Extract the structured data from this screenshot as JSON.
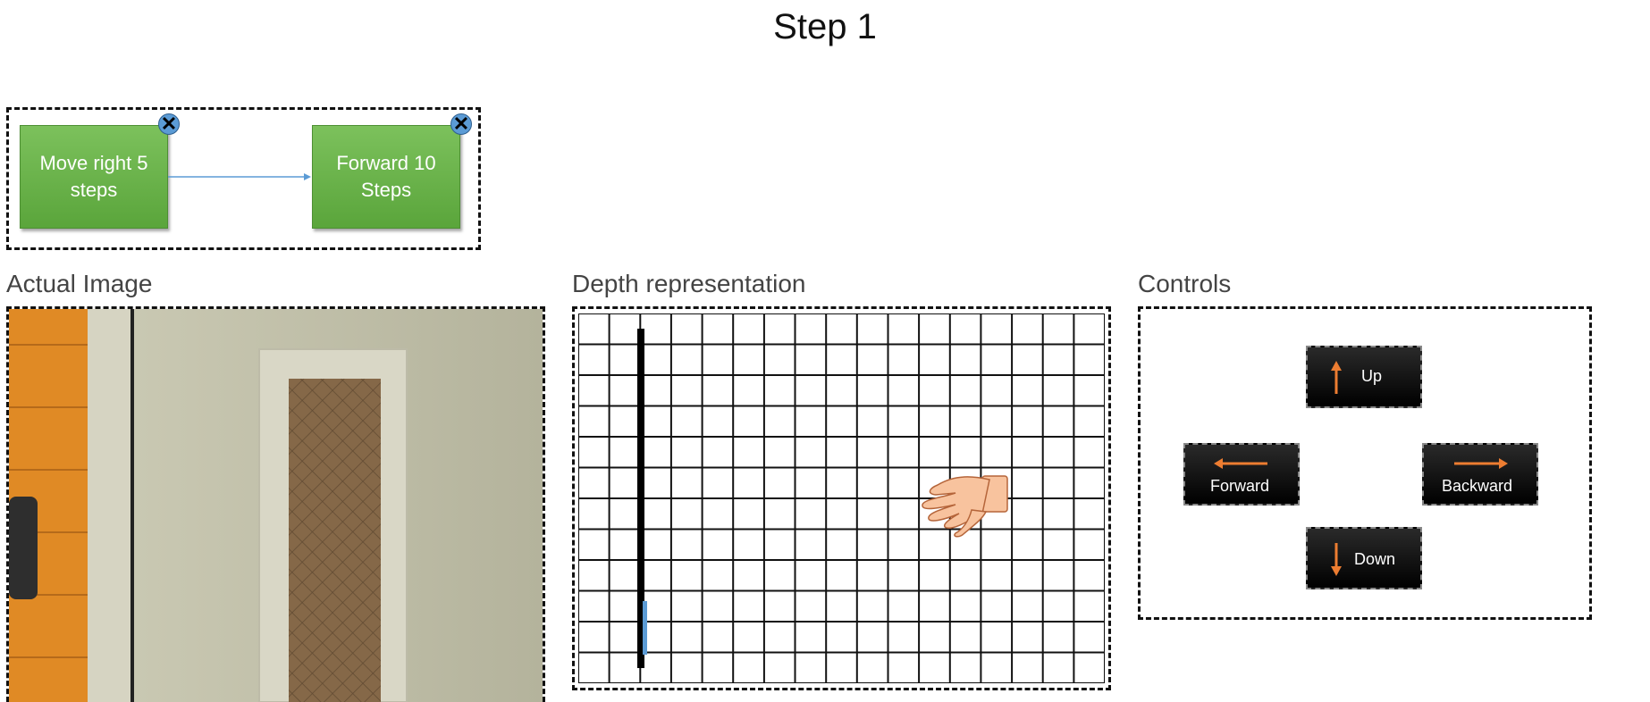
{
  "page": {
    "title": "Step 1"
  },
  "sequence": {
    "steps": [
      {
        "label": "Move right 5 steps"
      },
      {
        "label": "Forward 10 Steps"
      }
    ]
  },
  "sections": {
    "actual_image": "Actual Image",
    "depth": "Depth representation",
    "controls": "Controls"
  },
  "controls": {
    "up": "Up",
    "forward": "Forward",
    "backward": "Backward",
    "down": "Down"
  },
  "colors": {
    "step_green": "#6ab64a",
    "close_blue": "#5b9bd5",
    "arrow_orange": "#ed7d31"
  }
}
